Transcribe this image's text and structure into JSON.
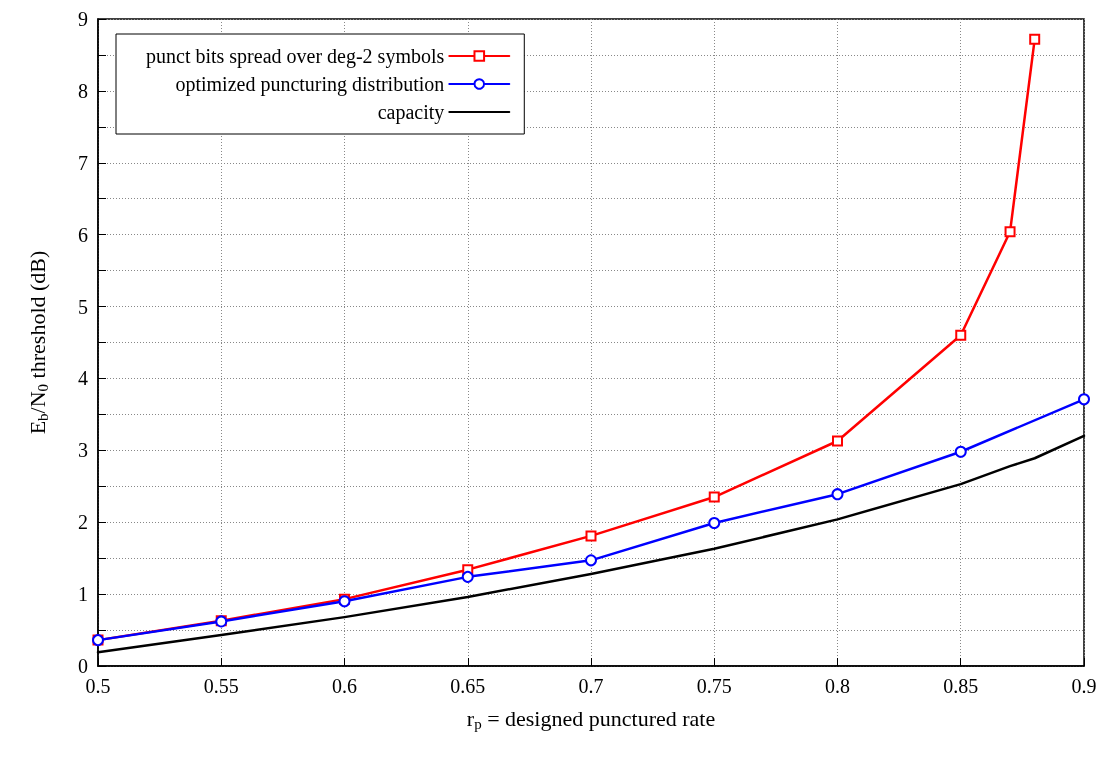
{
  "chart_data": {
    "type": "line",
    "xlabel": "r$_{p}$ = designed punctured rate",
    "ylabel": "E$_{b}$/N$_{0}$ threshold (dB)",
    "series": [
      {
        "name": "punct bits spread over deg-2 symbols",
        "color": "#ff0000",
        "marker": "square",
        "x": [
          0.5,
          0.55,
          0.6,
          0.65,
          0.7,
          0.75,
          0.8,
          0.85,
          0.87,
          0.88
        ],
        "values": [
          0.36,
          0.63,
          0.93,
          1.34,
          1.81,
          2.35,
          3.13,
          4.6,
          6.04,
          8.72
        ]
      },
      {
        "name": "optimized puncturing distribution",
        "color": "#0000ff",
        "marker": "circle",
        "x": [
          0.5,
          0.55,
          0.6,
          0.65,
          0.7,
          0.75,
          0.8,
          0.85,
          0.9
        ],
        "values": [
          0.36,
          0.62,
          0.9,
          1.24,
          1.47,
          1.99,
          2.39,
          2.98,
          3.71
        ]
      },
      {
        "name": "capacity",
        "color": "#000000",
        "marker": "none",
        "x": [
          0.5,
          0.55,
          0.6,
          0.65,
          0.7,
          0.75,
          0.8,
          0.85,
          0.87,
          0.88,
          0.9
        ],
        "values": [
          0.19,
          0.43,
          0.68,
          0.96,
          1.28,
          1.63,
          2.04,
          2.53,
          2.78,
          2.89,
          3.2
        ]
      }
    ],
    "xlim": [
      0.5,
      0.9
    ],
    "xticks": [
      0.5,
      0.55,
      0.6,
      0.65,
      0.7,
      0.75,
      0.8,
      0.85,
      0.9
    ],
    "ylim": [
      0,
      9
    ],
    "yticks": [
      0,
      {
        "value": 0.5,
        "label": null
      },
      1,
      {
        "value": 1.5,
        "label": null
      },
      2,
      {
        "value": 2.5,
        "label": null
      },
      3,
      {
        "value": 3.5,
        "label": null
      },
      4,
      {
        "value": 4.5,
        "label": null
      },
      5,
      {
        "value": 5.5,
        "label": null
      },
      6,
      {
        "value": 6.5,
        "label": null
      },
      7,
      {
        "value": 7.5,
        "label": null
      },
      8,
      {
        "value": 8.5,
        "label": null
      },
      9
    ],
    "grid": true,
    "legend": "top left",
    "line_style": "solid"
  }
}
